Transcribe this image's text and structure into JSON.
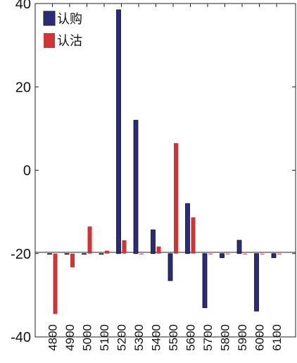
{
  "chart_data": {
    "type": "bar",
    "title": "",
    "xlabel": "",
    "ylabel": "",
    "ylim": [
      -40,
      40
    ],
    "yticks": [
      -40,
      -20,
      0,
      20,
      40
    ],
    "categories": [
      "4800",
      "4900",
      "5000",
      "5100",
      "5200",
      "5300",
      "5400",
      "5500",
      "5600",
      "5700",
      "5800",
      "5900",
      "6000",
      "6100"
    ],
    "series": [
      {
        "name": "认购",
        "color": "#2b2a7c",
        "values": [
          -20,
          -20,
          -20,
          -20,
          38.5,
          12,
          -14.3,
          -26.5,
          -8,
          -33,
          -21,
          -16.8,
          -33.8,
          -21
        ]
      },
      {
        "name": "认沽",
        "color": "#d03437",
        "values": [
          -34.5,
          -23.3,
          -13.5,
          -19.3,
          -16.8,
          -20,
          -18.3,
          6.5,
          -11.3,
          -20,
          -20,
          -20,
          -20,
          -20
        ]
      }
    ],
    "legend_position": "top-left",
    "grid": false
  }
}
